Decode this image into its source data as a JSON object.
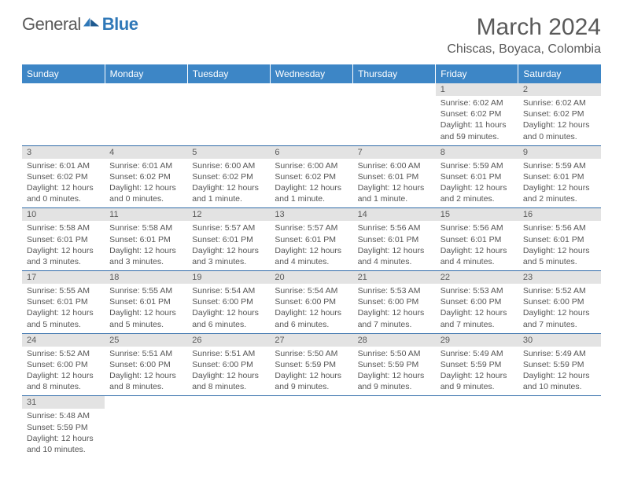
{
  "logo": {
    "text1": "General",
    "text2": "Blue"
  },
  "title": "March 2024",
  "location": "Chiscas, Boyaca, Colombia",
  "colors": {
    "header_bg": "#3d86c6",
    "header_text": "#ffffff",
    "daynum_bg": "#e3e3e3",
    "text_color": "#5a5a5a",
    "row_border": "#2f6aa8",
    "logo_blue": "#2f78b8"
  },
  "weekdays": [
    "Sunday",
    "Monday",
    "Tuesday",
    "Wednesday",
    "Thursday",
    "Friday",
    "Saturday"
  ],
  "weeks": [
    [
      null,
      null,
      null,
      null,
      null,
      {
        "n": "1",
        "sr": "Sunrise: 6:02 AM",
        "ss": "Sunset: 6:02 PM",
        "dl1": "Daylight: 11 hours",
        "dl2": "and 59 minutes."
      },
      {
        "n": "2",
        "sr": "Sunrise: 6:02 AM",
        "ss": "Sunset: 6:02 PM",
        "dl1": "Daylight: 12 hours",
        "dl2": "and 0 minutes."
      }
    ],
    [
      {
        "n": "3",
        "sr": "Sunrise: 6:01 AM",
        "ss": "Sunset: 6:02 PM",
        "dl1": "Daylight: 12 hours",
        "dl2": "and 0 minutes."
      },
      {
        "n": "4",
        "sr": "Sunrise: 6:01 AM",
        "ss": "Sunset: 6:02 PM",
        "dl1": "Daylight: 12 hours",
        "dl2": "and 0 minutes."
      },
      {
        "n": "5",
        "sr": "Sunrise: 6:00 AM",
        "ss": "Sunset: 6:02 PM",
        "dl1": "Daylight: 12 hours",
        "dl2": "and 1 minute."
      },
      {
        "n": "6",
        "sr": "Sunrise: 6:00 AM",
        "ss": "Sunset: 6:02 PM",
        "dl1": "Daylight: 12 hours",
        "dl2": "and 1 minute."
      },
      {
        "n": "7",
        "sr": "Sunrise: 6:00 AM",
        "ss": "Sunset: 6:01 PM",
        "dl1": "Daylight: 12 hours",
        "dl2": "and 1 minute."
      },
      {
        "n": "8",
        "sr": "Sunrise: 5:59 AM",
        "ss": "Sunset: 6:01 PM",
        "dl1": "Daylight: 12 hours",
        "dl2": "and 2 minutes."
      },
      {
        "n": "9",
        "sr": "Sunrise: 5:59 AM",
        "ss": "Sunset: 6:01 PM",
        "dl1": "Daylight: 12 hours",
        "dl2": "and 2 minutes."
      }
    ],
    [
      {
        "n": "10",
        "sr": "Sunrise: 5:58 AM",
        "ss": "Sunset: 6:01 PM",
        "dl1": "Daylight: 12 hours",
        "dl2": "and 3 minutes."
      },
      {
        "n": "11",
        "sr": "Sunrise: 5:58 AM",
        "ss": "Sunset: 6:01 PM",
        "dl1": "Daylight: 12 hours",
        "dl2": "and 3 minutes."
      },
      {
        "n": "12",
        "sr": "Sunrise: 5:57 AM",
        "ss": "Sunset: 6:01 PM",
        "dl1": "Daylight: 12 hours",
        "dl2": "and 3 minutes."
      },
      {
        "n": "13",
        "sr": "Sunrise: 5:57 AM",
        "ss": "Sunset: 6:01 PM",
        "dl1": "Daylight: 12 hours",
        "dl2": "and 4 minutes."
      },
      {
        "n": "14",
        "sr": "Sunrise: 5:56 AM",
        "ss": "Sunset: 6:01 PM",
        "dl1": "Daylight: 12 hours",
        "dl2": "and 4 minutes."
      },
      {
        "n": "15",
        "sr": "Sunrise: 5:56 AM",
        "ss": "Sunset: 6:01 PM",
        "dl1": "Daylight: 12 hours",
        "dl2": "and 4 minutes."
      },
      {
        "n": "16",
        "sr": "Sunrise: 5:56 AM",
        "ss": "Sunset: 6:01 PM",
        "dl1": "Daylight: 12 hours",
        "dl2": "and 5 minutes."
      }
    ],
    [
      {
        "n": "17",
        "sr": "Sunrise: 5:55 AM",
        "ss": "Sunset: 6:01 PM",
        "dl1": "Daylight: 12 hours",
        "dl2": "and 5 minutes."
      },
      {
        "n": "18",
        "sr": "Sunrise: 5:55 AM",
        "ss": "Sunset: 6:01 PM",
        "dl1": "Daylight: 12 hours",
        "dl2": "and 5 minutes."
      },
      {
        "n": "19",
        "sr": "Sunrise: 5:54 AM",
        "ss": "Sunset: 6:00 PM",
        "dl1": "Daylight: 12 hours",
        "dl2": "and 6 minutes."
      },
      {
        "n": "20",
        "sr": "Sunrise: 5:54 AM",
        "ss": "Sunset: 6:00 PM",
        "dl1": "Daylight: 12 hours",
        "dl2": "and 6 minutes."
      },
      {
        "n": "21",
        "sr": "Sunrise: 5:53 AM",
        "ss": "Sunset: 6:00 PM",
        "dl1": "Daylight: 12 hours",
        "dl2": "and 7 minutes."
      },
      {
        "n": "22",
        "sr": "Sunrise: 5:53 AM",
        "ss": "Sunset: 6:00 PM",
        "dl1": "Daylight: 12 hours",
        "dl2": "and 7 minutes."
      },
      {
        "n": "23",
        "sr": "Sunrise: 5:52 AM",
        "ss": "Sunset: 6:00 PM",
        "dl1": "Daylight: 12 hours",
        "dl2": "and 7 minutes."
      }
    ],
    [
      {
        "n": "24",
        "sr": "Sunrise: 5:52 AM",
        "ss": "Sunset: 6:00 PM",
        "dl1": "Daylight: 12 hours",
        "dl2": "and 8 minutes."
      },
      {
        "n": "25",
        "sr": "Sunrise: 5:51 AM",
        "ss": "Sunset: 6:00 PM",
        "dl1": "Daylight: 12 hours",
        "dl2": "and 8 minutes."
      },
      {
        "n": "26",
        "sr": "Sunrise: 5:51 AM",
        "ss": "Sunset: 6:00 PM",
        "dl1": "Daylight: 12 hours",
        "dl2": "and 8 minutes."
      },
      {
        "n": "27",
        "sr": "Sunrise: 5:50 AM",
        "ss": "Sunset: 5:59 PM",
        "dl1": "Daylight: 12 hours",
        "dl2": "and 9 minutes."
      },
      {
        "n": "28",
        "sr": "Sunrise: 5:50 AM",
        "ss": "Sunset: 5:59 PM",
        "dl1": "Daylight: 12 hours",
        "dl2": "and 9 minutes."
      },
      {
        "n": "29",
        "sr": "Sunrise: 5:49 AM",
        "ss": "Sunset: 5:59 PM",
        "dl1": "Daylight: 12 hours",
        "dl2": "and 9 minutes."
      },
      {
        "n": "30",
        "sr": "Sunrise: 5:49 AM",
        "ss": "Sunset: 5:59 PM",
        "dl1": "Daylight: 12 hours",
        "dl2": "and 10 minutes."
      }
    ],
    [
      {
        "n": "31",
        "sr": "Sunrise: 5:48 AM",
        "ss": "Sunset: 5:59 PM",
        "dl1": "Daylight: 12 hours",
        "dl2": "and 10 minutes."
      },
      null,
      null,
      null,
      null,
      null,
      null
    ]
  ]
}
